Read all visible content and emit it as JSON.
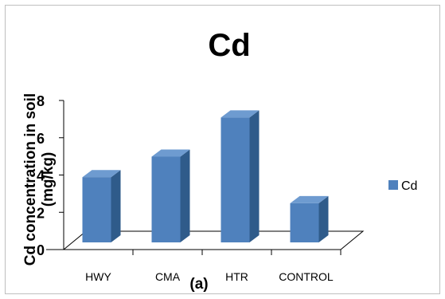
{
  "chart_data": {
    "type": "bar",
    "title": "Cd",
    "ylabel_line1": "Cd concentration in soil",
    "ylabel_line2": "(mg/kg)",
    "xlabel": "",
    "caption": "(a)",
    "categories": [
      "HWY",
      "CMA",
      "HTR",
      "CONTROL"
    ],
    "series": [
      {
        "name": "Cd",
        "values": [
          3.5,
          4.6,
          6.7,
          2.1
        ],
        "color": "#4f81bd"
      }
    ],
    "yticks": [
      0,
      2,
      4,
      6,
      8
    ],
    "ylim": [
      0,
      8
    ],
    "legend_position": "right",
    "bar_style": "3d",
    "grid": false
  }
}
